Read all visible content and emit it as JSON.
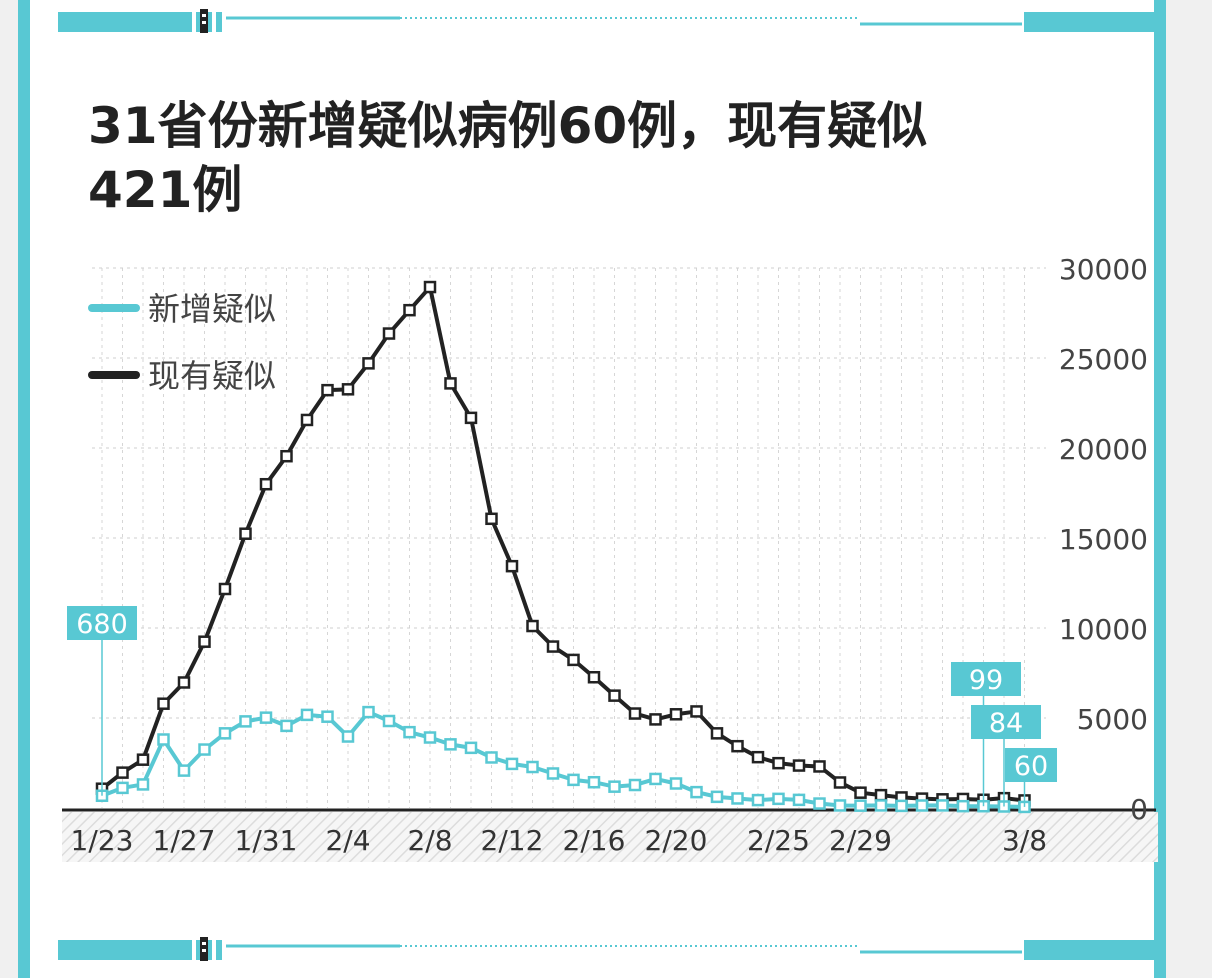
{
  "title": "31省份新增疑似病例60例，现有疑似421例",
  "colors": {
    "accent": "#58c8d3",
    "dark": "#222222"
  },
  "chart_data": {
    "type": "line",
    "title": "31省份新增疑似病例60例，现有疑似421例",
    "xlabel": "",
    "ylabel": "",
    "ylim": [
      0,
      30000
    ],
    "yticks": [
      "30000",
      "25000",
      "20000",
      "15000",
      "10000",
      "5000",
      "0"
    ],
    "xtick_labels": [
      {
        "index": 0,
        "label": "1/23"
      },
      {
        "index": 4,
        "label": "1/27"
      },
      {
        "index": 8,
        "label": "1/31"
      },
      {
        "index": 12,
        "label": "2/4"
      },
      {
        "index": 16,
        "label": "2/8"
      },
      {
        "index": 20,
        "label": "2/12"
      },
      {
        "index": 24,
        "label": "2/16"
      },
      {
        "index": 28,
        "label": "2/20"
      },
      {
        "index": 33,
        "label": "2/25"
      },
      {
        "index": 37,
        "label": "2/29"
      },
      {
        "index": 45,
        "label": "3/8"
      }
    ],
    "legend_position": "top-left",
    "grid": true,
    "series": [
      {
        "name": "新增疑似",
        "color": "#58c8d3",
        "values": [
          680,
          1118,
          1309,
          3806,
          2077,
          3248,
          4148,
          4812,
          5019,
          4562,
          5173,
          5072,
          3971,
          5328,
          4833,
          4214,
          3916,
          3536,
          3342,
          2807,
          2450,
          2277,
          1918,
          1563,
          1432,
          1185,
          1277,
          1614,
          1361,
          882,
          620,
          530,
          439,
          508,
          452,
          248,
          141,
          129,
          143,
          118,
          139,
          143,
          102,
          99,
          84,
          60
        ]
      },
      {
        "name": "现有疑似",
        "color": "#222222",
        "values": [
          1072,
          1965,
          2684,
          5794,
          6973,
          9239,
          12167,
          15238,
          17988,
          19544,
          21558,
          23214,
          23260,
          24702,
          26359,
          27657,
          28942,
          23589,
          21675,
          16067,
          13435,
          10109,
          8969,
          8228,
          7264,
          6242,
          5248,
          4922,
          5206,
          5365,
          4148,
          3434,
          2824,
          2491,
          2358,
          2308,
          1418,
          851,
          715,
          587,
          522,
          482,
          502,
          458,
          547,
          421
        ]
      }
    ],
    "annotations": [
      {
        "text": "680",
        "index": 0,
        "series": 0
      },
      {
        "text": "99",
        "index": 43,
        "series": 0
      },
      {
        "text": "84",
        "index": 44,
        "series": 0
      },
      {
        "text": "60",
        "index": 45,
        "series": 0
      }
    ]
  }
}
